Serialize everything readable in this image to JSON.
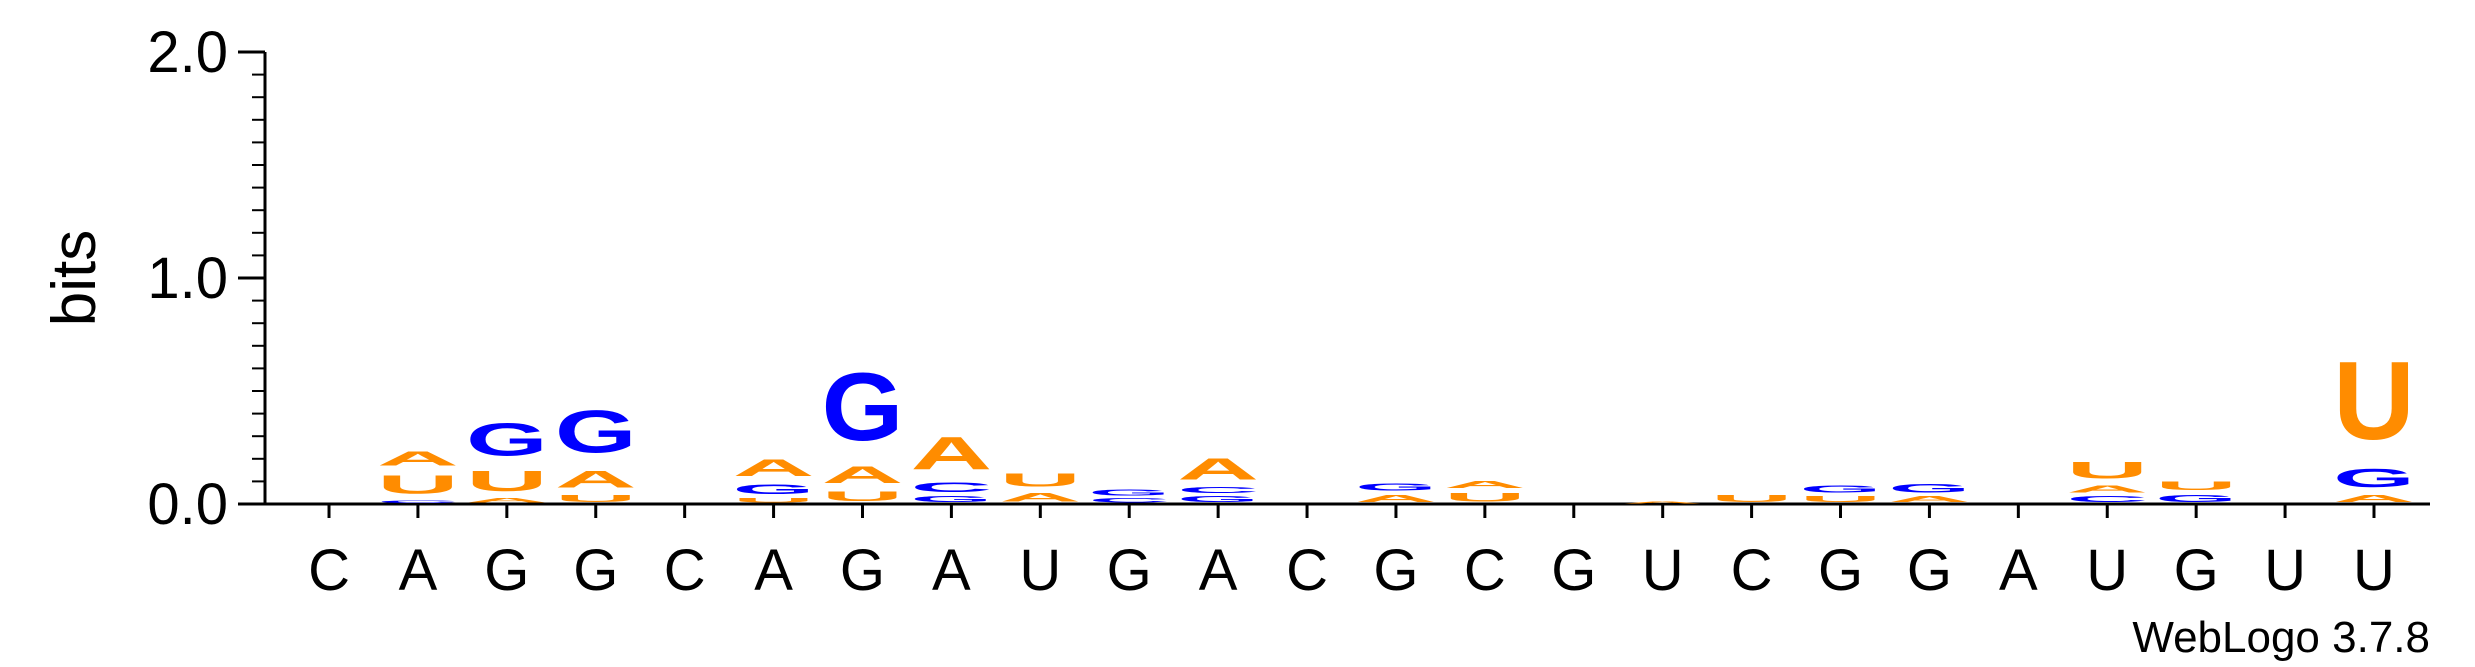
{
  "chart_data": {
    "type": "sequence-logo",
    "ylabel": "bits",
    "ylim": [
      0,
      2.0
    ],
    "yticks": [
      "0.0",
      "1.0",
      "2.0"
    ],
    "colors": {
      "A": "#ff8c00",
      "U": "#ff8c00",
      "G": "#0000ff",
      "C": "#0000ff"
    },
    "positions": [
      {
        "label": "C",
        "stack": []
      },
      {
        "label": "A",
        "stack": [
          {
            "b": "C",
            "h": 0.02
          },
          {
            "b": "U",
            "h": 0.13
          },
          {
            "b": "A",
            "h": 0.1
          }
        ]
      },
      {
        "label": "G",
        "stack": [
          {
            "b": "A",
            "h": 0.03
          },
          {
            "b": "U",
            "h": 0.14
          },
          {
            "b": "G",
            "h": 0.23
          }
        ]
      },
      {
        "label": "G",
        "stack": [
          {
            "b": "U",
            "h": 0.05
          },
          {
            "b": "A",
            "h": 0.12
          },
          {
            "b": "G",
            "h": 0.3
          }
        ]
      },
      {
        "label": "C",
        "stack": []
      },
      {
        "label": "A",
        "stack": [
          {
            "b": "U",
            "h": 0.03
          },
          {
            "b": "G",
            "h": 0.07
          },
          {
            "b": "A",
            "h": 0.12
          }
        ]
      },
      {
        "label": "G",
        "stack": [
          {
            "b": "U",
            "h": 0.07
          },
          {
            "b": "A",
            "h": 0.12
          },
          {
            "b": "G",
            "h": 0.48
          }
        ]
      },
      {
        "label": "A",
        "stack": [
          {
            "b": "G",
            "h": 0.04
          },
          {
            "b": "C",
            "h": 0.07
          },
          {
            "b": "A",
            "h": 0.23
          }
        ]
      },
      {
        "label": "U",
        "stack": [
          {
            "b": "A",
            "h": 0.06
          },
          {
            "b": "U",
            "h": 0.09
          }
        ]
      },
      {
        "label": "G",
        "stack": [
          {
            "b": "C",
            "h": 0.03
          },
          {
            "b": "G",
            "h": 0.04
          }
        ]
      },
      {
        "label": "A",
        "stack": [
          {
            "b": "G",
            "h": 0.04
          },
          {
            "b": "C",
            "h": 0.04
          },
          {
            "b": "A",
            "h": 0.15
          }
        ]
      },
      {
        "label": "C",
        "stack": []
      },
      {
        "label": "G",
        "stack": [
          {
            "b": "A",
            "h": 0.05
          },
          {
            "b": "G",
            "h": 0.05
          }
        ]
      },
      {
        "label": "C",
        "stack": [
          {
            "b": "U",
            "h": 0.06
          },
          {
            "b": "A",
            "h": 0.05
          }
        ]
      },
      {
        "label": "G",
        "stack": []
      },
      {
        "label": "U",
        "stack": [
          {
            "b": "A",
            "h": 0.015
          }
        ]
      },
      {
        "label": "C",
        "stack": [
          {
            "b": "U",
            "h": 0.05
          }
        ]
      },
      {
        "label": "G",
        "stack": [
          {
            "b": "U",
            "h": 0.04
          },
          {
            "b": "G",
            "h": 0.05
          }
        ]
      },
      {
        "label": "G",
        "stack": [
          {
            "b": "A",
            "h": 0.04
          },
          {
            "b": "G",
            "h": 0.06
          }
        ]
      },
      {
        "label": "A",
        "stack": []
      },
      {
        "label": "U",
        "stack": [
          {
            "b": "C",
            "h": 0.04
          },
          {
            "b": "A",
            "h": 0.05
          },
          {
            "b": "U",
            "h": 0.12
          }
        ]
      },
      {
        "label": "G",
        "stack": [
          {
            "b": "G",
            "h": 0.05
          },
          {
            "b": "U",
            "h": 0.06
          }
        ]
      },
      {
        "label": "U",
        "stack": []
      },
      {
        "label": "U",
        "stack": [
          {
            "b": "A",
            "h": 0.05
          },
          {
            "b": "G",
            "h": 0.13
          },
          {
            "b": "U",
            "h": 0.55
          }
        ]
      }
    ]
  },
  "credit": "WebLogo 3.7.8"
}
